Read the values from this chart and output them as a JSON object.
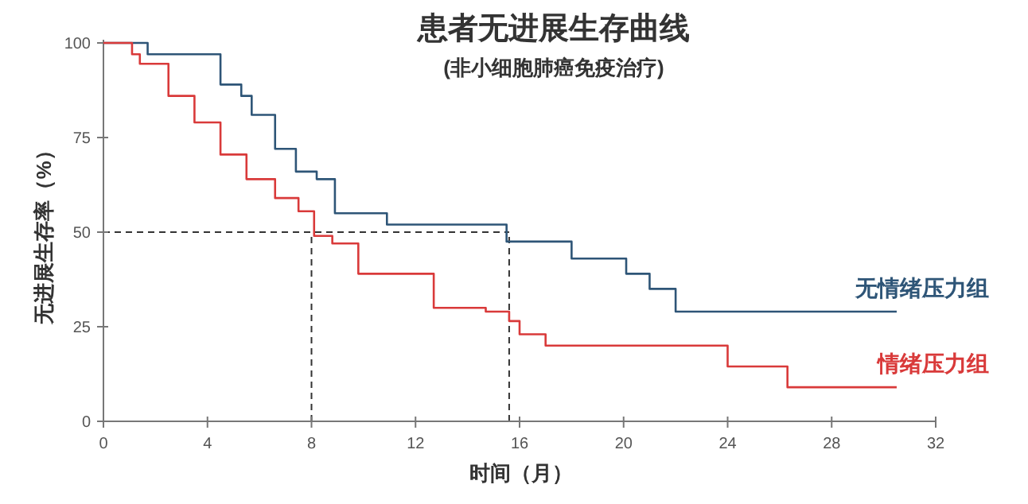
{
  "chart_data": {
    "type": "step",
    "title": "患者无进展生存曲线",
    "subtitle": "(非小细胞肺癌免疫治疗)",
    "xlabel": "时间（月）",
    "ylabel": "无进展生存率（%）",
    "xlim": [
      0,
      32
    ],
    "xticks": [
      0,
      4,
      8,
      12,
      16,
      20,
      24,
      28,
      32
    ],
    "ylim": [
      0,
      100
    ],
    "yticks": [
      0,
      25,
      50,
      75,
      100
    ],
    "series": [
      {
        "name": "无情绪压力组",
        "color": "#2e5577",
        "x": [
          0,
          1.7,
          4.5,
          5.3,
          5.7,
          6.6,
          7.4,
          8.2,
          8.9,
          10.9,
          15.5,
          18.0,
          20.1,
          21.0,
          22.0,
          30.5
        ],
        "values": [
          100,
          97,
          89,
          86,
          81,
          72,
          66,
          64,
          55,
          52,
          47.5,
          43,
          39,
          35,
          29,
          29
        ]
      },
      {
        "name": "情绪压力组",
        "color": "#d93a3a",
        "x": [
          0,
          1.1,
          1.4,
          2.5,
          3.5,
          4.5,
          5.5,
          6.6,
          7.5,
          8.1,
          8.8,
          9.8,
          12.7,
          14.7,
          15.6,
          16.0,
          17.0,
          24.0,
          26.3,
          30.5
        ],
        "values": [
          100,
          97,
          94.5,
          86,
          79,
          70.5,
          64,
          59,
          55.5,
          49,
          47,
          39,
          30,
          29,
          26.5,
          23,
          20,
          14.5,
          9,
          9
        ]
      }
    ],
    "ref_lines": [
      {
        "axis": "y",
        "value": 50,
        "color": "#333333",
        "line_style": "dashed"
      },
      {
        "axis": "x",
        "value": 8,
        "color": "#333333",
        "line_style": "dashed"
      },
      {
        "axis": "x",
        "value": 15.6,
        "color": "#333333",
        "line_style": "dashed"
      }
    ]
  }
}
